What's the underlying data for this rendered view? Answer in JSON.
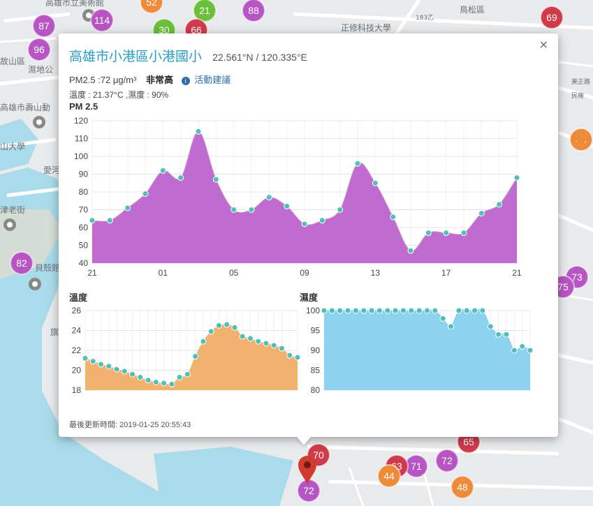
{
  "map": {
    "place_labels": [
      {
        "text": "鳥松區"
      },
      {
        "text": "正修科技大學"
      },
      {
        "text": "高雄市立美術館"
      },
      {
        "text": "高雄市壽山動"
      },
      {
        "text": "山大學"
      },
      {
        "text": "津老街"
      },
      {
        "text": "貝殼館"
      },
      {
        "text": "故山區"
      },
      {
        "text": "濕地公"
      },
      {
        "text": "愛河"
      },
      {
        "text": "旗"
      },
      {
        "text": "183乙"
      },
      {
        "text": "美正路"
      },
      {
        "text": "民権"
      }
    ],
    "markers": [
      {
        "value": "87",
        "color": "#b855c4"
      },
      {
        "value": "114",
        "color": "#b855c4"
      },
      {
        "value": "52",
        "color": "#ee8b3a"
      },
      {
        "value": "21",
        "color": "#6bbf3b"
      },
      {
        "value": "88",
        "color": "#b855c4"
      },
      {
        "value": "30",
        "color": "#6bbf3b"
      },
      {
        "value": "66",
        "color": "#cf3b4a"
      },
      {
        "value": "69",
        "color": "#cf3b4a"
      },
      {
        "value": "96",
        "color": "#b855c4"
      },
      {
        "value": "82",
        "color": "#b855c4"
      },
      {
        "value": "48",
        "color": "#ee8b3a"
      },
      {
        "value": "73",
        "color": "#b855c4"
      },
      {
        "value": "75",
        "color": "#b855c4"
      },
      {
        "value": "65",
        "color": "#cf3b4a"
      },
      {
        "value": "72",
        "color": "#b855c4"
      },
      {
        "value": "71",
        "color": "#b855c4"
      },
      {
        "value": "63",
        "color": "#cf3b4a"
      },
      {
        "value": "44",
        "color": "#ee8b3a"
      },
      {
        "value": "48",
        "color": "#ee8b3a"
      },
      {
        "value": "72",
        "color": "#b855c4"
      },
      {
        "value": "70",
        "color": "#cf3b4a"
      }
    ]
  },
  "popup": {
    "title": "高雄市小港區小港國小",
    "coords": "22.561°N / 120.335°E",
    "close_label": "×",
    "pm_text": "PM2.5 :72 μg/m³",
    "pm_level": "非常高",
    "info_icon": "i",
    "activity_link": "活動建議",
    "env_text": "溫度 : 21.37°C ,濕度 : 90%",
    "updated": "最後更新時間: 2019-01-25 20:55:43"
  },
  "chart_data": [
    {
      "type": "area",
      "title": "PM 2.5",
      "ylim": [
        40,
        120
      ],
      "yticks": [
        40,
        50,
        60,
        70,
        80,
        90,
        100,
        110,
        120
      ],
      "xticks": [
        {
          "x": 0,
          "label": "21"
        },
        {
          "x": 4,
          "label": "01"
        },
        {
          "x": 8,
          "label": "05"
        },
        {
          "x": 12,
          "label": "09"
        },
        {
          "x": 16,
          "label": "13"
        },
        {
          "x": 20,
          "label": "17"
        },
        {
          "x": 24,
          "label": "21"
        }
      ],
      "values": [
        64,
        64,
        71,
        79,
        92,
        88,
        114,
        87,
        70,
        70,
        77,
        72,
        62,
        64,
        70,
        96,
        85,
        66,
        47,
        57,
        57,
        57,
        68,
        73,
        88
      ],
      "grid": true
    },
    {
      "type": "area",
      "title": "溫度",
      "ylim": [
        18,
        26
      ],
      "yticks": [
        18,
        20,
        22,
        24,
        26
      ],
      "values": [
        21.2,
        20.9,
        20.6,
        20.4,
        20.1,
        19.9,
        19.6,
        19.3,
        19.0,
        18.8,
        18.7,
        18.6,
        19.3,
        19.6,
        21.4,
        22.9,
        23.9,
        24.5,
        24.6,
        24.3,
        23.4,
        23.2,
        22.9,
        22.7,
        22.5,
        22.2,
        21.5,
        21.3
      ]
    },
    {
      "type": "area",
      "title": "濕度",
      "ylim": [
        80,
        100
      ],
      "yticks": [
        80,
        85,
        90,
        95,
        100
      ],
      "values": [
        100,
        100,
        100,
        100,
        100,
        100,
        100,
        100,
        100,
        100,
        100,
        100,
        100,
        100,
        100,
        98,
        96,
        100,
        100,
        100,
        100,
        96,
        94,
        94,
        90,
        91,
        90
      ]
    }
  ]
}
